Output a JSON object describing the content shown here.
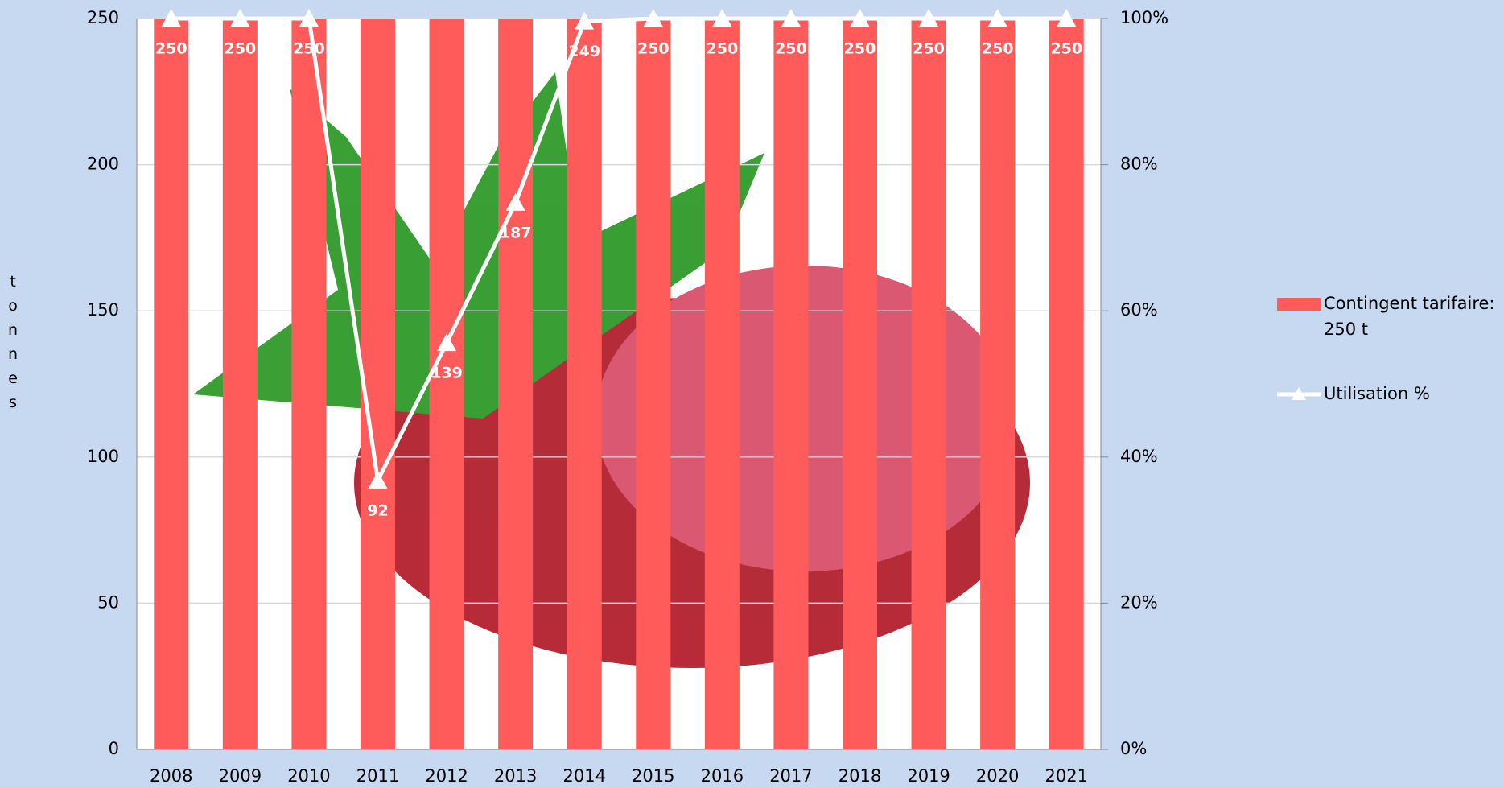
{
  "chart_data": {
    "type": "bar+line",
    "y_label": "tonnes",
    "categories": [
      "2008",
      "2009",
      "2010",
      "2011",
      "2012",
      "2013",
      "2014",
      "2015",
      "2016",
      "2017",
      "2018",
      "2019",
      "2020",
      "2021"
    ],
    "series": [
      {
        "name": "Contingent tarifaire: 250 t",
        "type": "bar",
        "color": "#ff5b5b",
        "values": [
          250,
          250,
          250,
          250,
          250,
          250,
          250,
          250,
          250,
          250,
          250,
          250,
          250,
          250
        ]
      },
      {
        "name": "Utilisation %",
        "type": "line",
        "color": "#ffffff",
        "values": [
          250,
          250,
          250,
          92,
          139,
          187,
          249,
          250,
          250,
          250,
          250,
          250,
          250,
          250
        ]
      }
    ],
    "ylim": [
      0,
      250
    ],
    "yticks": [
      0,
      50,
      100,
      150,
      200,
      250
    ],
    "y2lim": [
      0,
      100
    ],
    "y2ticks": [
      {
        "value": 0,
        "label": "0%"
      },
      {
        "value": 20,
        "label": "20%"
      },
      {
        "value": 40,
        "label": "40%"
      },
      {
        "value": 60,
        "label": "60%"
      },
      {
        "value": 80,
        "label": "80%"
      },
      {
        "value": 100,
        "label": "100%"
      }
    ],
    "grid": true
  }
}
